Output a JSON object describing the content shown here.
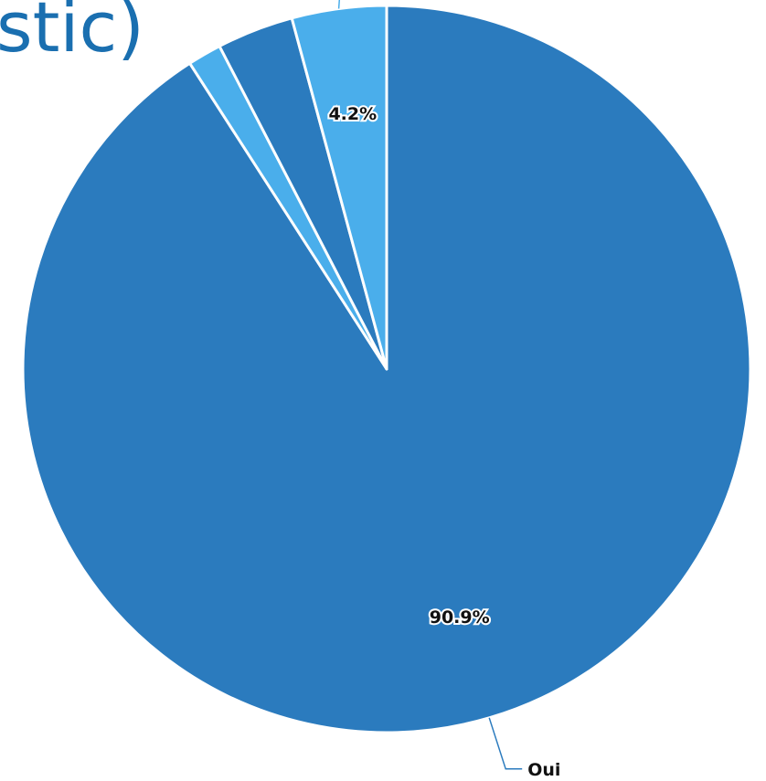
{
  "title_fragment": "stic)",
  "chart_data": {
    "type": "pie",
    "start_angle_deg": 0,
    "direction": "clockwise",
    "slices": [
      {
        "label": "Oui",
        "value": 90.9,
        "data_label": "90.9%",
        "color": "#2b7bbe",
        "show_category": true
      },
      {
        "label": "",
        "value": 1.5,
        "data_label": "",
        "color": "#4aaeeb",
        "show_category": false
      },
      {
        "label": "",
        "value": 3.4,
        "data_label": "",
        "color": "#2b7bbe",
        "show_category": false
      },
      {
        "label": "",
        "value": 4.2,
        "data_label": "4.2%",
        "color": "#4aaeeb",
        "show_category": false
      }
    ],
    "legend": "none"
  }
}
